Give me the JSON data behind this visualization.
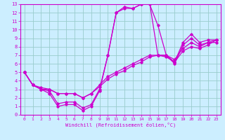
{
  "xlabel": "Windchill (Refroidissement éolien,°C)",
  "xlim": [
    -0.5,
    23.5
  ],
  "ylim": [
    0,
    13
  ],
  "xticks": [
    0,
    1,
    2,
    3,
    4,
    5,
    6,
    7,
    8,
    9,
    10,
    11,
    12,
    13,
    14,
    15,
    16,
    17,
    18,
    19,
    20,
    21,
    22,
    23
  ],
  "yticks": [
    0,
    1,
    2,
    3,
    4,
    5,
    6,
    7,
    8,
    9,
    10,
    11,
    12,
    13
  ],
  "bg_color": "#cceeff",
  "line_color": "#cc00cc",
  "grid_color": "#99cccc",
  "lines": [
    {
      "x": [
        0,
        1,
        2,
        3,
        4,
        5,
        6,
        7,
        8,
        9,
        10,
        11,
        12,
        13,
        14,
        15,
        16,
        17,
        18,
        19,
        20,
        21,
        22,
        23
      ],
      "y": [
        5,
        3.5,
        3.0,
        2.5,
        1.0,
        1.2,
        1.2,
        0.5,
        1.0,
        2.8,
        7.0,
        12.0,
        12.7,
        12.5,
        13.0,
        13.2,
        7.0,
        7.0,
        6.2,
        8.5,
        9.5,
        8.5,
        8.8,
        8.8
      ]
    },
    {
      "x": [
        0,
        1,
        2,
        3,
        4,
        5,
        6,
        7,
        8,
        9,
        10,
        11,
        12,
        13,
        14,
        15,
        16,
        17,
        18,
        19,
        20,
        21,
        22,
        23
      ],
      "y": [
        5,
        3.5,
        3.0,
        2.8,
        1.3,
        1.5,
        1.5,
        0.8,
        1.2,
        3.0,
        7.0,
        12.0,
        12.5,
        12.5,
        13.0,
        13.0,
        10.5,
        7.0,
        6.0,
        8.2,
        9.0,
        8.2,
        8.5,
        8.5
      ]
    },
    {
      "x": [
        0,
        1,
        2,
        3,
        4,
        5,
        6,
        7,
        8,
        9,
        10,
        11,
        12,
        13,
        14,
        15,
        16,
        17,
        18,
        19,
        20,
        21,
        22,
        23
      ],
      "y": [
        5,
        3.5,
        3.2,
        3.0,
        2.5,
        2.5,
        2.5,
        2.0,
        2.5,
        3.5,
        4.5,
        5.0,
        5.5,
        6.0,
        6.5,
        7.0,
        7.0,
        7.0,
        6.5,
        7.8,
        8.5,
        8.0,
        8.5,
        8.8
      ]
    },
    {
      "x": [
        0,
        1,
        2,
        3,
        4,
        5,
        6,
        7,
        8,
        9,
        10,
        11,
        12,
        13,
        14,
        15,
        16,
        17,
        18,
        19,
        20,
        21,
        22,
        23
      ],
      "y": [
        5,
        3.5,
        3.0,
        3.0,
        2.5,
        2.5,
        2.5,
        2.0,
        2.5,
        3.3,
        4.2,
        4.8,
        5.2,
        5.8,
        6.2,
        6.8,
        7.0,
        6.8,
        6.2,
        7.5,
        8.0,
        7.8,
        8.2,
        8.8
      ]
    }
  ]
}
